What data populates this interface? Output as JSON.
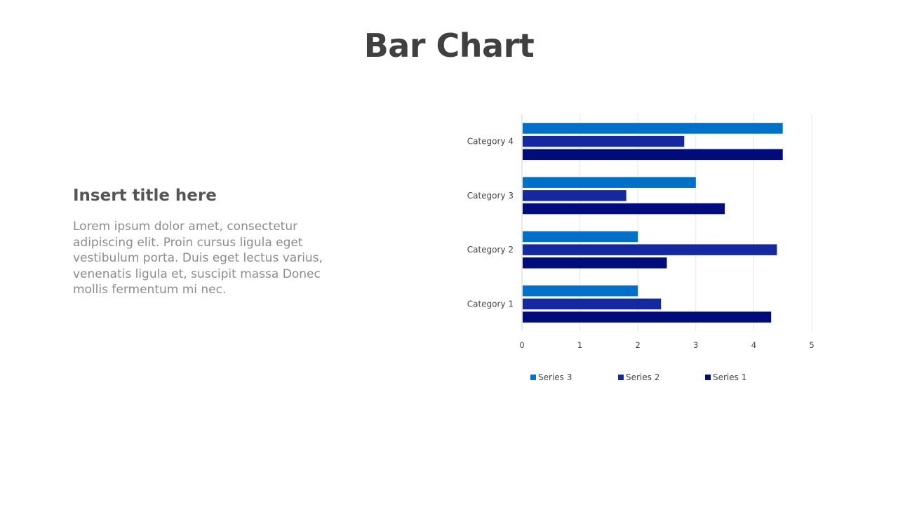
{
  "slide": {
    "title": "Bar Chart"
  },
  "text_panel": {
    "title": "Insert title here",
    "body": "Lorem ipsum dolor amet, consectetur adipiscing elit. Proin cursus ligula eget vestibulum porta. Duis eget lectus varius, venenatis ligula et, suscipit massa Donec mollis fermentum mi nec."
  },
  "chart_data": {
    "type": "bar",
    "orientation": "horizontal",
    "categories": [
      "Category 1",
      "Category 2",
      "Category 3",
      "Category 4"
    ],
    "series": [
      {
        "name": "Series 1",
        "color": "#000C7B",
        "values": [
          4.3,
          2.5,
          3.5,
          4.5
        ]
      },
      {
        "name": "Series 2",
        "color": "#1428A0",
        "values": [
          2.4,
          4.4,
          1.8,
          2.8
        ]
      },
      {
        "name": "Series 3",
        "color": "#0070C8",
        "values": [
          2,
          2,
          3,
          4.5
        ]
      }
    ],
    "xlim": [
      0,
      5
    ],
    "xticks": [
      "0",
      "1",
      "2",
      "3",
      "4",
      "5"
    ],
    "title": "",
    "xlabel": "",
    "ylabel": "",
    "grid": true,
    "legend_position": "bottom",
    "legend_order": [
      "Series 3",
      "Series 2",
      "Series 1"
    ]
  }
}
